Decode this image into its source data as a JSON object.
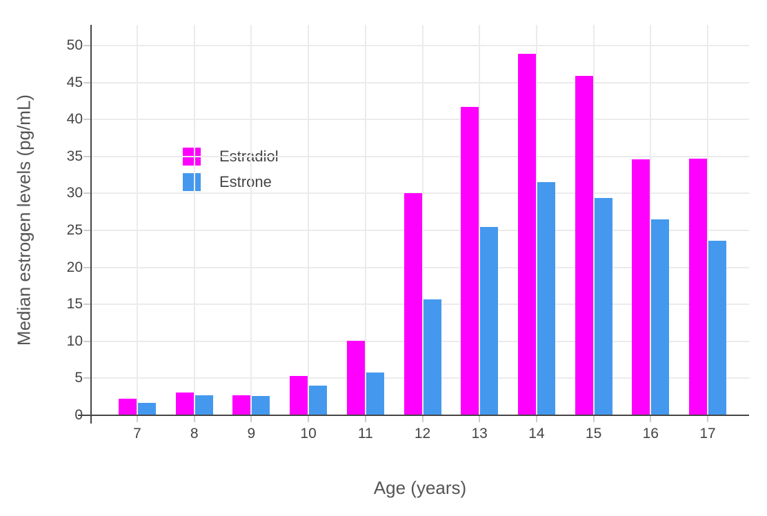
{
  "chart_data": {
    "type": "bar",
    "title": "",
    "categories": [
      "7",
      "8",
      "9",
      "10",
      "11",
      "12",
      "13",
      "14",
      "15",
      "16",
      "17"
    ],
    "series": [
      {
        "name": "Estradiol",
        "color": "#FF00FF",
        "values": [
          2.2,
          3.1,
          2.7,
          5.3,
          10.1,
          30.0,
          41.7,
          48.9,
          45.9,
          34.6,
          34.7
        ]
      },
      {
        "name": "Estrone",
        "color": "#4499EE",
        "values": [
          1.7,
          2.7,
          2.6,
          4.0,
          5.8,
          15.7,
          25.5,
          31.5,
          29.4,
          26.5,
          23.6
        ]
      }
    ],
    "xlabel": "Age (years)",
    "ylabel": "Median estrogen levels (pg/mL)",
    "ylim": [
      0,
      52.8
    ],
    "yticks": [
      0,
      5,
      10,
      15,
      20,
      25,
      30,
      35,
      40,
      45,
      50
    ],
    "grid": true,
    "legend_position": "inside-top-left"
  },
  "colors": {
    "background": "#ffffff",
    "gridline": "#ebebeb",
    "axis_line": "#444444",
    "tick_mark": "#cccccc",
    "tick_text": "#444444",
    "title_text": "#555555"
  }
}
